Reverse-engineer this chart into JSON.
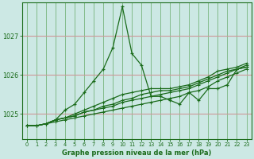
{
  "xlabel": "Graphe pression niveau de la mer (hPa)",
  "bg_color": "#cce8e4",
  "grid_color_h": "#cc9999",
  "grid_color_v": "#66aa66",
  "line_color": "#1a6b1a",
  "x_ticks": [
    0,
    1,
    2,
    3,
    4,
    5,
    6,
    7,
    8,
    9,
    10,
    11,
    12,
    13,
    14,
    15,
    16,
    17,
    18,
    19,
    20,
    21,
    22,
    23
  ],
  "ylim": [
    1024.35,
    1027.85
  ],
  "yticks": [
    1025,
    1026,
    1027
  ],
  "yticklabels": [
    "1025",
    "1026",
    "1027"
  ],
  "series": [
    [
      1024.7,
      1024.7,
      1024.75,
      1024.8,
      1024.85,
      1024.9,
      1024.95,
      1025.0,
      1025.05,
      1025.1,
      1025.15,
      1025.2,
      1025.25,
      1025.3,
      1025.35,
      1025.4,
      1025.45,
      1025.55,
      1025.6,
      1025.7,
      1025.85,
      1025.95,
      1026.05,
      1026.15
    ],
    [
      1024.7,
      1024.7,
      1024.75,
      1024.85,
      1024.9,
      1024.95,
      1025.05,
      1025.1,
      1025.15,
      1025.2,
      1025.3,
      1025.35,
      1025.4,
      1025.45,
      1025.5,
      1025.55,
      1025.6,
      1025.65,
      1025.75,
      1025.85,
      1025.95,
      1026.05,
      1026.15,
      1026.2
    ],
    [
      1024.7,
      1024.7,
      1024.75,
      1024.85,
      1024.9,
      1024.95,
      1025.05,
      1025.1,
      1025.2,
      1025.25,
      1025.35,
      1025.4,
      1025.5,
      1025.55,
      1025.6,
      1025.6,
      1025.65,
      1025.7,
      1025.8,
      1025.9,
      1026.0,
      1026.1,
      1026.15,
      1026.25
    ],
    [
      1024.7,
      1024.7,
      1024.75,
      1024.85,
      1024.9,
      1025.0,
      1025.1,
      1025.2,
      1025.3,
      1025.4,
      1025.5,
      1025.55,
      1025.6,
      1025.65,
      1025.65,
      1025.65,
      1025.7,
      1025.75,
      1025.85,
      1025.95,
      1026.1,
      1026.15,
      1026.2,
      1026.3
    ]
  ],
  "volatile_series": [
    1024.7,
    1024.7,
    1024.75,
    1024.85,
    1025.1,
    1025.25,
    1025.55,
    1025.85,
    1026.15,
    1026.7,
    1027.75,
    1026.55,
    1026.25,
    1025.45,
    1025.45,
    1025.35,
    1025.25,
    1025.55,
    1025.35,
    1025.65,
    1025.65,
    1025.75,
    1026.15,
    1026.2
  ]
}
